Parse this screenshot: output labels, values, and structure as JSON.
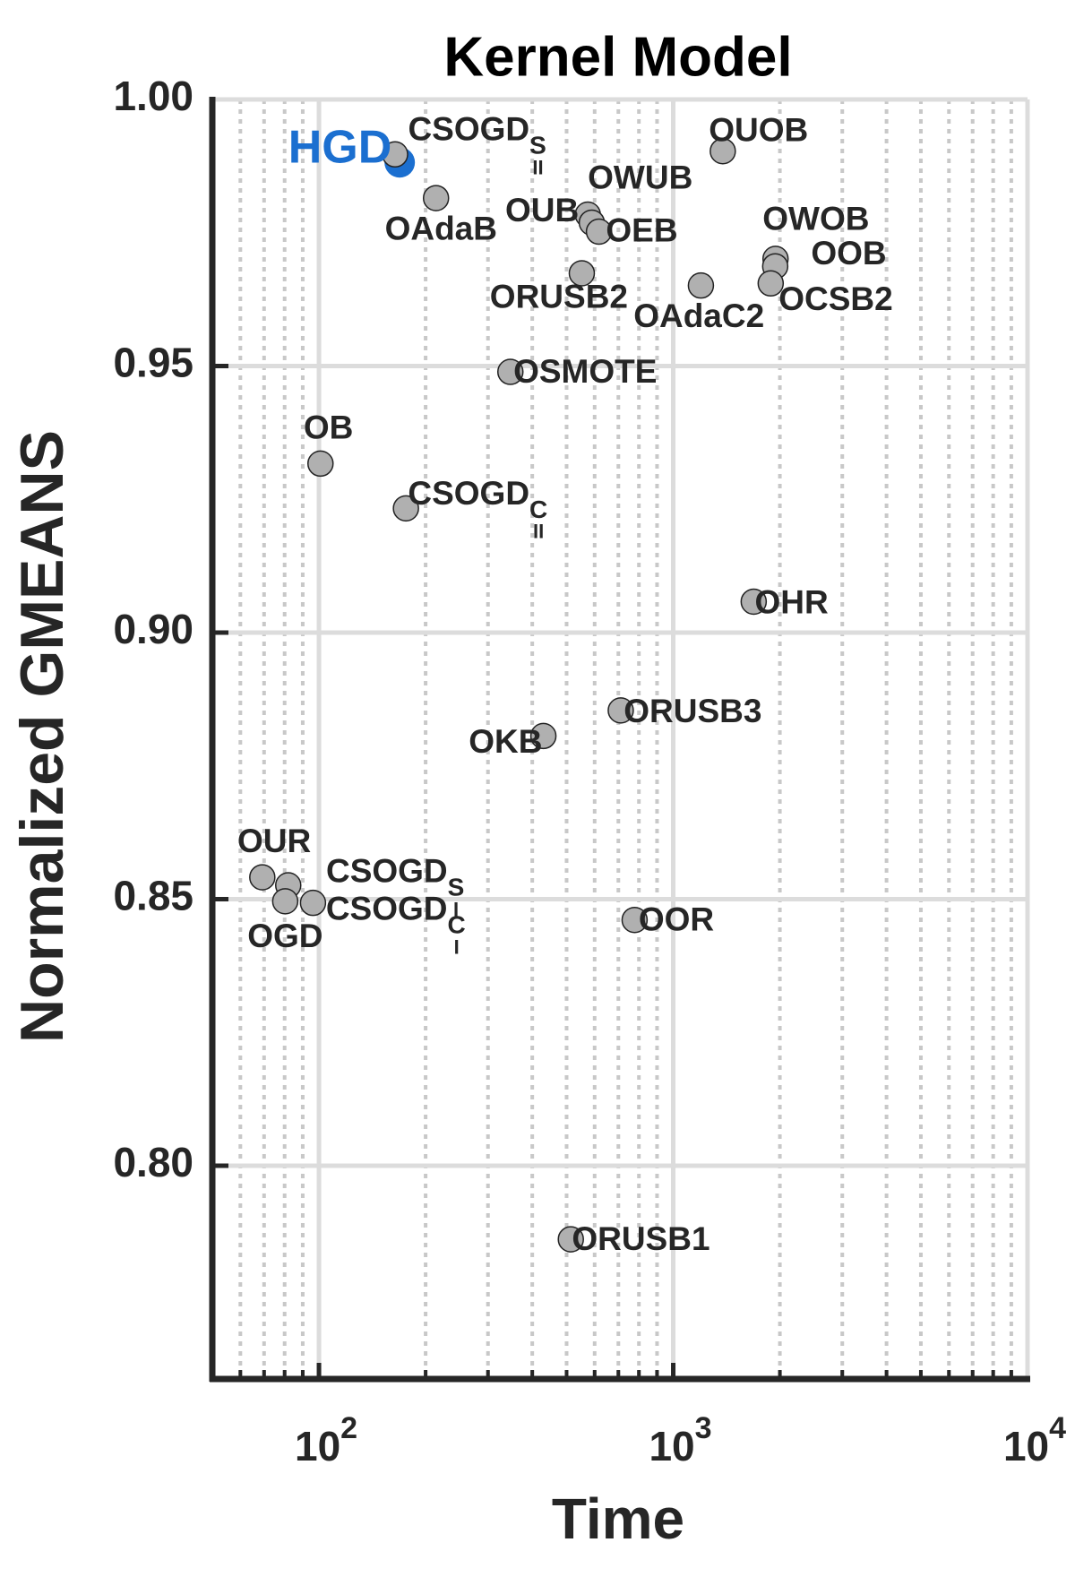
{
  "chart_data": {
    "type": "scatter",
    "title": "Kernel Model",
    "xlabel": "Time",
    "ylabel": "Normalized GMEANS",
    "xscale": "log",
    "xlim": [
      50,
      10000
    ],
    "ylim": [
      0.76,
      1.0
    ],
    "xticks": [
      {
        "value": 100,
        "label": "10",
        "power": "2"
      },
      {
        "value": 1000,
        "label": "10",
        "power": "3"
      },
      {
        "value": 10000,
        "label": "10",
        "power": "4"
      }
    ],
    "xminorticks": [
      60,
      70,
      80,
      90,
      200,
      300,
      400,
      500,
      600,
      700,
      800,
      900,
      2000,
      3000,
      4000,
      5000,
      6000,
      7000,
      8000,
      9000
    ],
    "yticks": [
      {
        "value": 1.0,
        "label": "1.00"
      },
      {
        "value": 0.95,
        "label": "0.95"
      },
      {
        "value": 0.9,
        "label": "0.90"
      },
      {
        "value": 0.85,
        "label": "0.85"
      },
      {
        "value": 0.8,
        "label": "0.80"
      }
    ],
    "grid": true,
    "labels": [
      "HGD",
      {
        "text": "CSOGD",
        "sub": "S",
        "sub2": "II"
      },
      "OAdaB",
      "OUB",
      "OWUB",
      "OEB",
      "OUOB",
      "ORUSB2",
      "OAdaC2",
      "OWOB",
      "OOB",
      "OCSB2",
      "OSMOTE",
      "OB",
      {
        "text": "CSOGD",
        "sub": "C",
        "sub2": "II"
      },
      "OHR",
      "ORUSB3",
      "OKB",
      "OUR",
      {
        "text": "CSOGD",
        "sub": "S",
        "sub2": "I"
      },
      "OGD",
      {
        "text": "CSOGD",
        "sub": "C",
        "sub2": "I"
      },
      "OOR",
      "ORUSB1"
    ],
    "x": [
      169,
      164,
      214,
      574,
      589,
      617,
      1380,
      552,
      1197,
      1944,
      1940,
      1884,
      347,
      101,
      176,
      1687,
      711,
      430,
      69.2,
      81.9,
      80.3,
      96.2,
      778,
      514
    ],
    "values": [
      0.9882,
      0.9897,
      0.9815,
      0.9784,
      0.9769,
      0.9752,
      0.9903,
      0.9674,
      0.9651,
      0.9701,
      0.9687,
      0.9655,
      0.9489,
      0.9317,
      0.9233,
      0.9058,
      0.8854,
      0.8806,
      0.8541,
      0.8526,
      0.8496,
      0.8493,
      0.8461,
      0.7862
    ],
    "colors": [
      "#1b6fd0",
      "#b0b0b0",
      "#b0b0b0",
      "#b0b0b0",
      "#b0b0b0",
      "#b0b0b0",
      "#b0b0b0",
      "#b0b0b0",
      "#b0b0b0",
      "#b0b0b0",
      "#b0b0b0",
      "#b0b0b0",
      "#b0b0b0",
      "#b0b0b0",
      "#b0b0b0",
      "#b0b0b0",
      "#b0b0b0",
      "#b0b0b0",
      "#b0b0b0",
      "#b0b0b0",
      "#b0b0b0",
      "#b0b0b0",
      "#b0b0b0",
      "#b0b0b0"
    ]
  }
}
